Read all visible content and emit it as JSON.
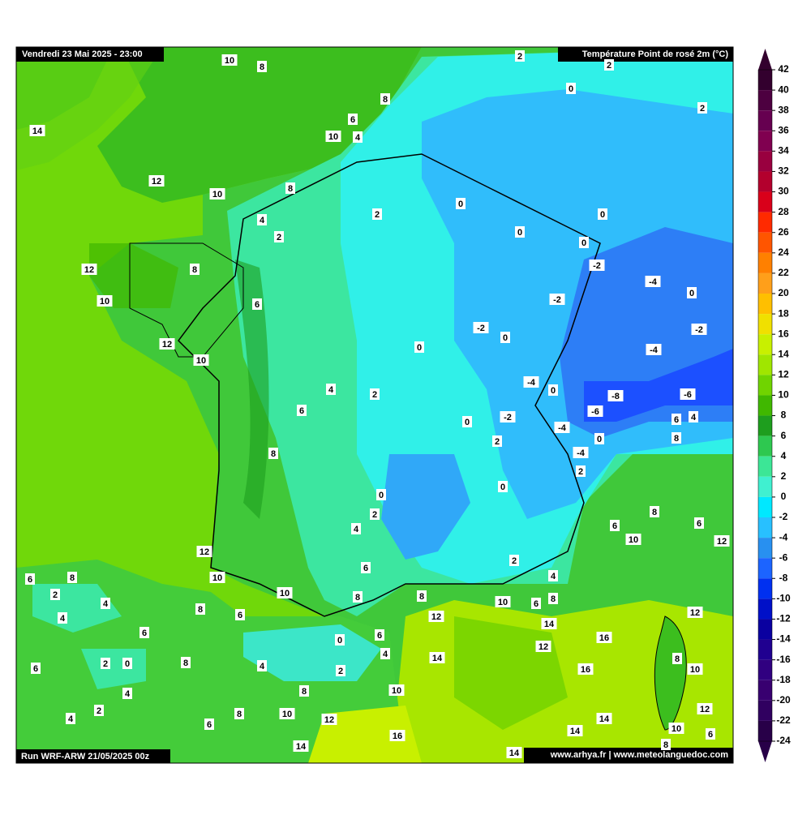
{
  "header": {
    "date": "Vendredi 23 Mai 2025 - 23:00",
    "title": "Température Point de rosé 2m (°C)"
  },
  "footer": {
    "run": "Run WRF-ARW 21/05/2025 00z",
    "credits": "www.arhya.fr | www.meteolanguedoc.com"
  },
  "colorbar": {
    "levels": [
      42,
      40,
      38,
      36,
      34,
      32,
      30,
      28,
      26,
      24,
      22,
      20,
      18,
      16,
      14,
      12,
      10,
      8,
      6,
      4,
      2,
      0,
      -2,
      -4,
      -6,
      -8,
      -10,
      -12,
      -14,
      -16,
      -18,
      -20,
      -22,
      -24
    ],
    "colors": [
      "#33002e",
      "#4d0040",
      "#660050",
      "#800050",
      "#99003f",
      "#b3002d",
      "#d9001a",
      "#ff2a00",
      "#ff5500",
      "#ff8000",
      "#ff9f1a",
      "#ffbf00",
      "#f0e000",
      "#c8f000",
      "#a0e600",
      "#70d400",
      "#40b800",
      "#1e9e1e",
      "#2ec850",
      "#3ce696",
      "#40f0d0",
      "#00e8ff",
      "#28c0ff",
      "#2890f0",
      "#1c64ff",
      "#0030f0",
      "#0010c8",
      "#0a00a0",
      "#200090",
      "#300080",
      "#380070",
      "#300060",
      "#280048"
    ]
  },
  "map": {
    "labels": [
      10,
      8,
      2,
      2,
      0,
      2,
      14,
      8,
      6,
      10,
      4,
      12,
      10,
      8,
      2,
      0,
      0,
      4,
      2,
      0,
      0,
      -2,
      12,
      8,
      -4,
      0,
      10,
      6,
      -2,
      -2,
      0,
      -2,
      12,
      10,
      0,
      -4,
      4,
      2,
      -4,
      0,
      -8,
      -6,
      6,
      -6,
      0,
      -2,
      -4,
      6,
      4,
      2,
      0,
      8,
      8,
      -4,
      2,
      0,
      0,
      2,
      8,
      6,
      4,
      6,
      10,
      12,
      12,
      2,
      6,
      6,
      8,
      10,
      4,
      2,
      10,
      8,
      8,
      10,
      6,
      8,
      4,
      8,
      6,
      12,
      12,
      4,
      14,
      6,
      6,
      16,
      0,
      12,
      4,
      14,
      8,
      2,
      0,
      8,
      4,
      2,
      6,
      16,
      10,
      4,
      8,
      10,
      2,
      6,
      8,
      10,
      12,
      14,
      12,
      4,
      10,
      14,
      16,
      6,
      14,
      14,
      8
    ]
  }
}
